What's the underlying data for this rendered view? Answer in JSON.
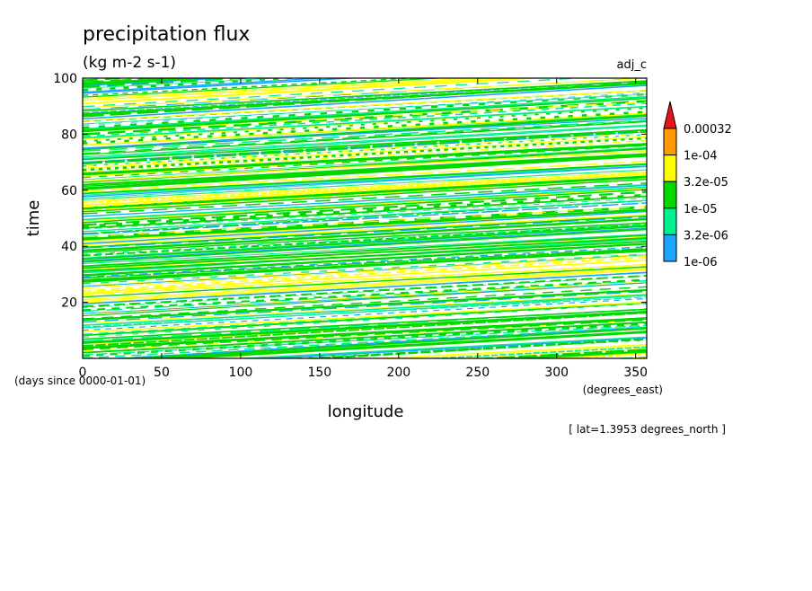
{
  "chart_data": {
    "type": "heatmap",
    "title": "precipitation flux",
    "units": "(kg m-2 s-1)",
    "run_label": "adj_c",
    "xlabel": "longitude",
    "x_units": "(degrees_east)",
    "ylabel": "time",
    "y_units": "(days since 0000-01-01)",
    "xlim": [
      0,
      357
    ],
    "ylim": [
      0,
      100
    ],
    "x_ticks": [
      0,
      50,
      100,
      150,
      200,
      250,
      300,
      350
    ],
    "y_ticks": [
      20,
      40,
      60,
      80,
      100
    ],
    "grid": false,
    "annotation": "[ lat=1.3953 degrees_north ]",
    "colorbar": {
      "labels": [
        "0.00032",
        "1e-04",
        "3.2e-05",
        "1e-05",
        "3.2e-06",
        "1e-06"
      ],
      "colors": [
        "#e8141c",
        "#ff9a00",
        "#ffff00",
        "#00d800",
        "#00f090",
        "#1aa6ff"
      ],
      "extend": "max"
    }
  }
}
